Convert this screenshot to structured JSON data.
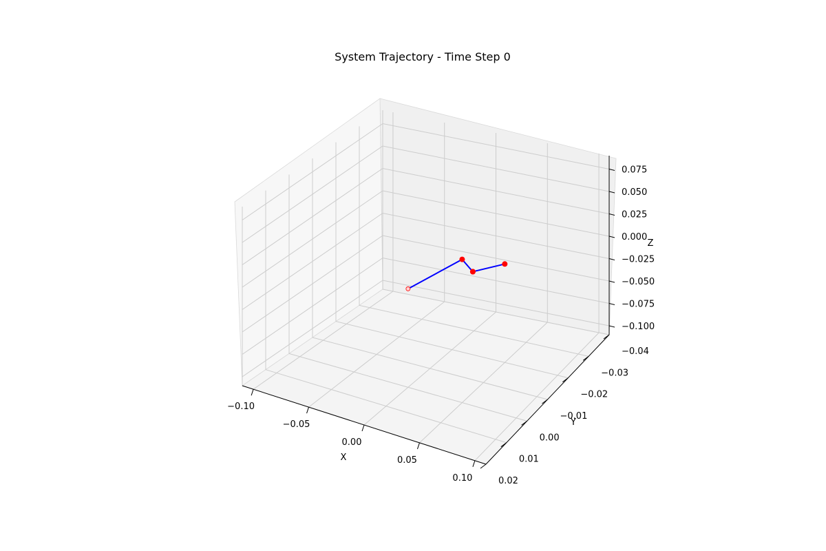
{
  "chart_data": {
    "type": "line",
    "projection": "3d",
    "title": "System Trajectory - Time Step 0",
    "xlabel": "X",
    "ylabel": "Y",
    "zlabel": "Z",
    "xlim": [
      -0.11,
      0.11
    ],
    "ylim": [
      -0.04,
      0.02
    ],
    "zlim": [
      -0.11,
      0.09
    ],
    "x_ticks": [
      "−0.10",
      "−0.05",
      "0.00",
      "0.05",
      "0.10"
    ],
    "y_ticks": [
      "−0.04",
      "−0.03",
      "−0.02",
      "−0.01",
      "0.00",
      "0.01",
      "0.02"
    ],
    "z_ticks": [
      "−0.100",
      "−0.075",
      "−0.050",
      "−0.025",
      "0.000",
      "0.025",
      "0.050",
      "0.075"
    ],
    "grid": true,
    "colors": {
      "line": "#0000ff",
      "marker": "#ff0000",
      "pane": "#f2f2f2",
      "grid": "#cccccc"
    },
    "series": [
      {
        "points": [
          {
            "x": 0.0,
            "y": 0.0,
            "z": 0.0
          },
          {
            "x": 0.05,
            "y": 0.0,
            "z": 0.05
          },
          {
            "x": 0.05,
            "y": -0.005,
            "z": 0.025
          },
          {
            "x": 0.052,
            "y": -0.004,
            "z": 0.028
          },
          {
            "x": 0.05,
            "y": -0.02,
            "z": 0.0
          }
        ],
        "marker_hollow_first": true
      }
    ]
  }
}
